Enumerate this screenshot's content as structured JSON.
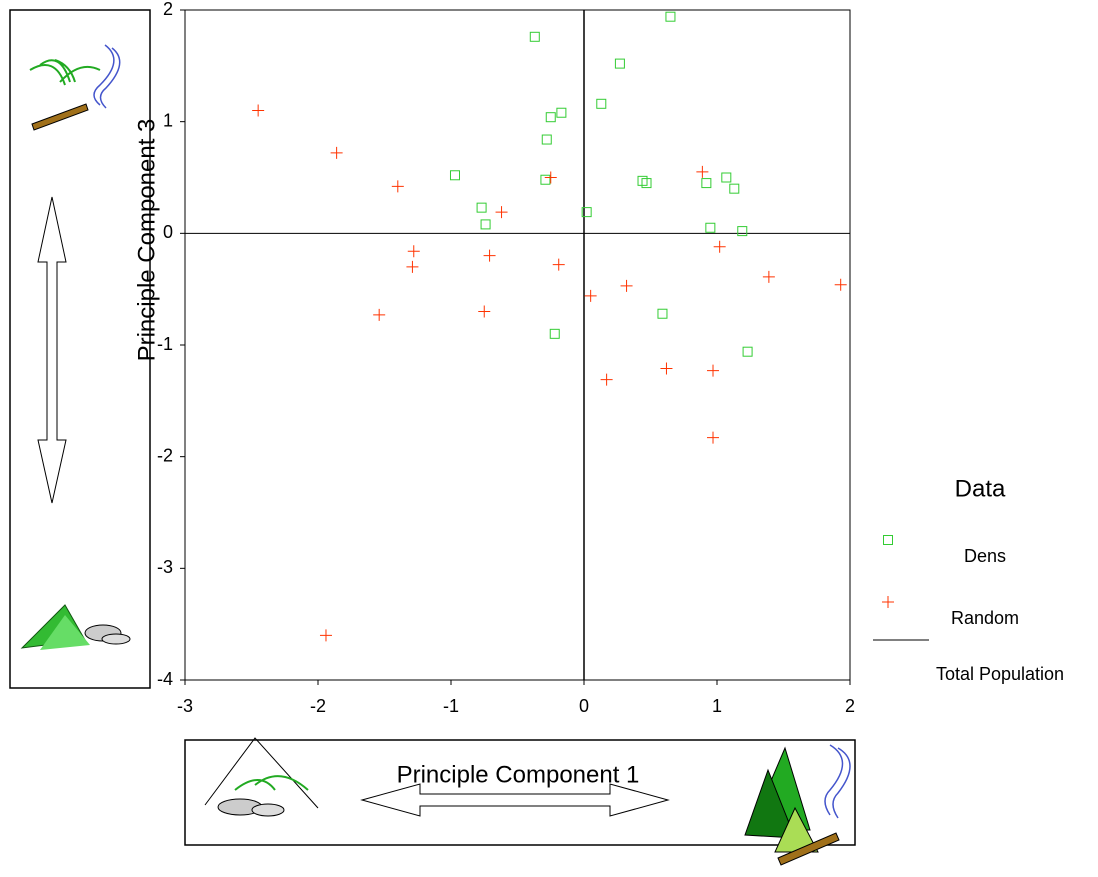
{
  "chart_data": {
    "type": "scatter",
    "x_label": "Principle Component 1",
    "y_label": "Principle Component 3",
    "legend_title": "Data",
    "xlim": [
      -3,
      2
    ],
    "xticks": [
      -3,
      -2,
      -1,
      0,
      1,
      2
    ],
    "ylim": [
      -4,
      2
    ],
    "yticks": [
      -4,
      -3,
      -2,
      -1,
      0,
      1,
      2
    ],
    "series": [
      {
        "name": "Dens",
        "color": "#33cc33",
        "marker": "square",
        "x": [
          0.65,
          -0.37,
          0.27,
          0.13,
          -0.17,
          -0.25,
          -0.28,
          -0.29,
          -0.97,
          -0.77,
          -0.74,
          0.02,
          0.44,
          0.47,
          0.92,
          1.07,
          1.13,
          0.95,
          1.19,
          -0.22,
          0.59,
          1.23
        ],
        "values": [
          1.94,
          1.76,
          1.52,
          1.16,
          1.08,
          1.04,
          0.84,
          0.48,
          0.52,
          0.23,
          0.08,
          0.19,
          0.47,
          0.45,
          0.45,
          0.5,
          0.4,
          0.05,
          0.02,
          -0.9,
          -0.72,
          -1.06
        ]
      },
      {
        "name": "Random",
        "color": "#ff3300",
        "marker": "plus",
        "x": [
          -2.45,
          -1.86,
          -1.4,
          -0.25,
          -0.62,
          0.89,
          -1.28,
          -1.29,
          -0.71,
          -0.19,
          1.02,
          -1.54,
          -0.75,
          0.05,
          0.32,
          1.39,
          1.93,
          0.17,
          0.62,
          0.97,
          0.97,
          -1.94
        ],
        "values": [
          1.1,
          0.72,
          0.42,
          0.5,
          0.19,
          0.55,
          -0.16,
          -0.3,
          -0.2,
          -0.28,
          -0.12,
          -0.73,
          -0.7,
          -0.56,
          -0.47,
          -0.39,
          -0.46,
          -1.31,
          -1.21,
          -1.23,
          -1.83,
          -3.6
        ]
      },
      {
        "name": "Total Population",
        "color": "#000000",
        "marker": "line",
        "x": [],
        "values": []
      }
    ]
  }
}
